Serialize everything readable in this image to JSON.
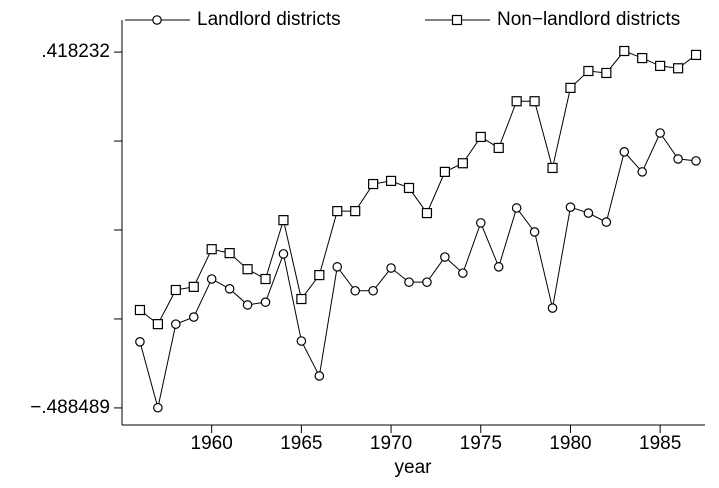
{
  "chart_data": {
    "type": "line",
    "x_label": "year",
    "x": [
      1956,
      1957,
      1958,
      1959,
      1960,
      1961,
      1962,
      1963,
      1964,
      1965,
      1966,
      1967,
      1968,
      1969,
      1970,
      1971,
      1972,
      1973,
      1974,
      1975,
      1976,
      1977,
      1978,
      1979,
      1980,
      1981,
      1982,
      1983,
      1984,
      1985,
      1986,
      1987
    ],
    "series": [
      {
        "name": "Landlord districts",
        "color": "#000000",
        "marker": "circle",
        "values": [
          -0.32,
          -0.488,
          -0.275,
          -0.257,
          -0.16,
          -0.185,
          -0.226,
          -0.219,
          -0.096,
          -0.318,
          -0.407,
          -0.129,
          -0.19,
          -0.19,
          -0.132,
          -0.168,
          -0.168,
          -0.104,
          -0.145,
          -0.017,
          -0.129,
          0.021,
          -0.04,
          -0.234,
          0.023,
          0.008,
          -0.015,
          0.164,
          0.113,
          0.212,
          0.146,
          0.141
        ]
      },
      {
        "name": "Non−landlord districts",
        "color": "#000000",
        "marker": "square",
        "values": [
          -0.239,
          -0.275,
          -0.188,
          -0.18,
          -0.084,
          -0.094,
          -0.135,
          -0.16,
          -0.01,
          -0.211,
          -0.15,
          0.013,
          0.013,
          0.082,
          0.09,
          0.072,
          0.008,
          0.113,
          0.135,
          0.202,
          0.174,
          0.293,
          0.293,
          0.123,
          0.327,
          0.37,
          0.365,
          0.421,
          0.403,
          0.383,
          0.377,
          0.411
        ]
      }
    ],
    "xlim": [
      1955,
      1987.5
    ],
    "xticks": [
      1960,
      1965,
      1970,
      1975,
      1980,
      1985
    ],
    "ylim": [
      -0.532,
      0.5
    ],
    "yticks": [
      {
        "value": -0.488489,
        "label": "−.488489"
      },
      {
        "value": 0.418232,
        "label": ".418232"
      }
    ],
    "yminorticks": [
      -0.261809,
      -0.035128,
      0.191552
    ],
    "grid": false,
    "legend": "top"
  }
}
